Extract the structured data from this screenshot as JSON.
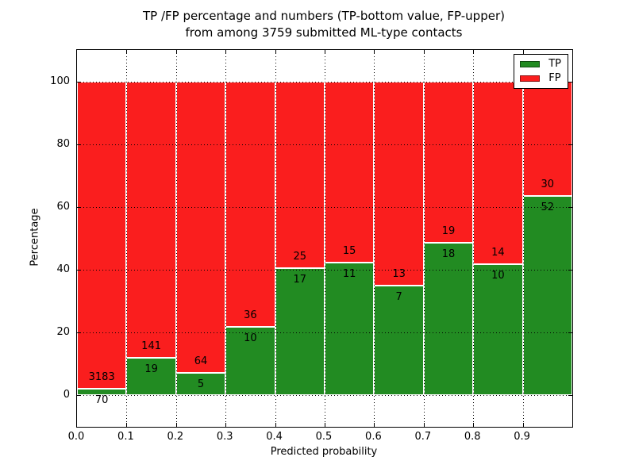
{
  "title": {
    "line1": "TP /FP percentage and numbers (TP-bottom value, FP-upper)",
    "line2": "from among 3759 submitted ML-type contacts"
  },
  "chart_data": {
    "type": "bar",
    "stacked": true,
    "normalized_to_percent": true,
    "title": "TP /FP percentage and numbers (TP-bottom value, FP-upper)\nfrom among 3759 submitted ML-type contacts",
    "xlabel": "Predicted probability",
    "ylabel": "Percentage",
    "total_contacts": 3759,
    "x_tick_labels": [
      "0.0",
      "0.1",
      "0.2",
      "0.3",
      "0.4",
      "0.5",
      "0.6",
      "0.7",
      "0.8",
      "0.9"
    ],
    "y_ticks": [
      0,
      20,
      40,
      60,
      80,
      100
    ],
    "xlim": [
      0.0,
      1.0
    ],
    "ylim": [
      -10,
      110
    ],
    "bin_width": 0.1,
    "grid": "dotted black, horizontal and vertical",
    "legend": {
      "position": "upper right",
      "entries": [
        {
          "label": "TP",
          "color": "#228b22"
        },
        {
          "label": "FP",
          "color": "#fa1e1e"
        }
      ]
    },
    "colors": {
      "tp": "#228b22",
      "fp": "#fa1e1e",
      "bar_edge": "#ffffff"
    },
    "series": [
      {
        "name": "TP",
        "values": [
          70,
          19,
          5,
          10,
          17,
          11,
          7,
          18,
          10,
          52
        ]
      },
      {
        "name": "FP",
        "values": [
          3183,
          141,
          64,
          36,
          25,
          15,
          13,
          19,
          14,
          30
        ]
      }
    ],
    "bins": [
      {
        "x0": 0.0,
        "tp": 70,
        "fp": 3183
      },
      {
        "x0": 0.1,
        "tp": 19,
        "fp": 141
      },
      {
        "x0": 0.2,
        "tp": 5,
        "fp": 64
      },
      {
        "x0": 0.3,
        "tp": 10,
        "fp": 36
      },
      {
        "x0": 0.4,
        "tp": 17,
        "fp": 25
      },
      {
        "x0": 0.5,
        "tp": 11,
        "fp": 15
      },
      {
        "x0": 0.6,
        "tp": 7,
        "fp": 13
      },
      {
        "x0": 0.7,
        "tp": 18,
        "fp": 19
      },
      {
        "x0": 0.8,
        "tp": 10,
        "fp": 14
      },
      {
        "x0": 0.9,
        "tp": 52,
        "fp": 30
      }
    ]
  }
}
